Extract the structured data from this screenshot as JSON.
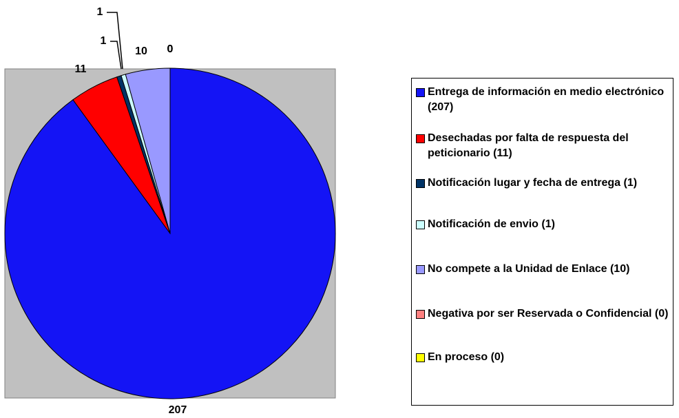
{
  "chart_data": {
    "type": "pie",
    "categories": [
      "Entrega de información en medio electrónico (207)",
      "Desechadas por falta de respuesta del peticionario (11)",
      "Notificación lugar y fecha de entrega (1)",
      "Notificación de envio (1)",
      "No compete a la Unidad de Enlace (10)",
      "Negativa por ser Reservada o Confidencial (0)",
      "En proceso (0)"
    ],
    "values": [
      207,
      11,
      1,
      1,
      10,
      0,
      0
    ],
    "colors": [
      "#1414f5",
      "#ff0000",
      "#003366",
      "#ccffff",
      "#9999ff",
      "#ff8080",
      "#ffff00"
    ],
    "legend": "right"
  }
}
